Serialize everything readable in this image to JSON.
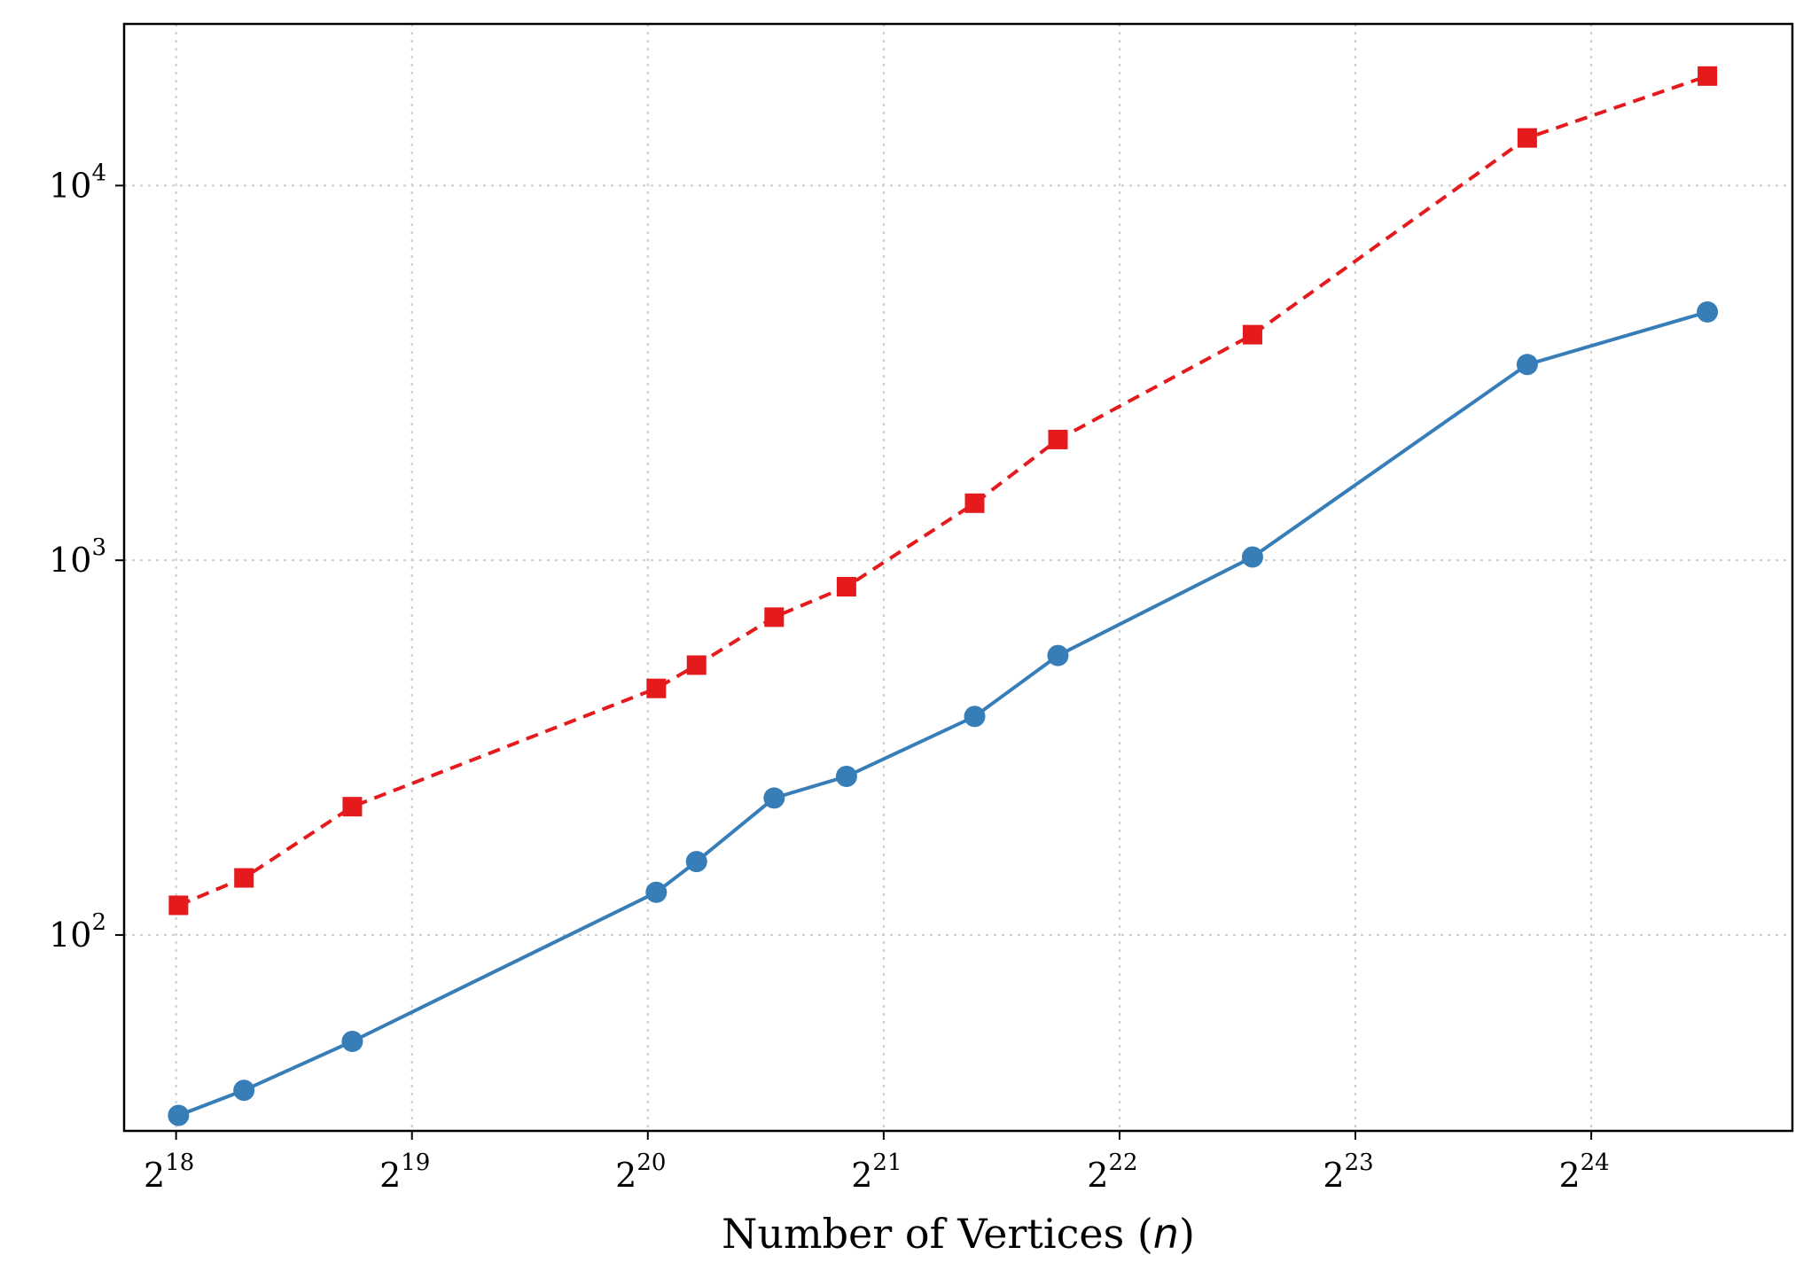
{
  "chart_data": {
    "type": "line",
    "title": "",
    "xlabel": "Number of Vertices",
    "xlabel_var": "n",
    "ylabel": "",
    "x_scale": "log2",
    "y_scale": "log10",
    "xlim": [
      225000,
      30300000
    ],
    "ylim": [
      30,
      27000
    ],
    "grid": true,
    "legend": "none",
    "x_ticks": [
      {
        "base": "2",
        "exp": "18",
        "value": 262144
      },
      {
        "base": "2",
        "exp": "19",
        "value": 524288
      },
      {
        "base": "2",
        "exp": "20",
        "value": 1048576
      },
      {
        "base": "2",
        "exp": "21",
        "value": 2097152
      },
      {
        "base": "2",
        "exp": "22",
        "value": 4194304
      },
      {
        "base": "2",
        "exp": "23",
        "value": 8388608
      },
      {
        "base": "2",
        "exp": "24",
        "value": 16777216
      }
    ],
    "y_ticks": [
      {
        "base": "10",
        "exp": "2",
        "value": 100
      },
      {
        "base": "10",
        "exp": "3",
        "value": 1000
      },
      {
        "base": "10",
        "exp": "4",
        "value": 10000
      }
    ],
    "series": [
      {
        "name": "series-red",
        "color": "#e41a1c",
        "linestyle": "dashed",
        "marker": "square",
        "x": [
          264000,
          320000,
          440000,
          1075000,
          1210000,
          1520000,
          1880000,
          2740000,
          3500000,
          6200000,
          13900000,
          23600000
        ],
        "y": [
          120,
          142,
          220,
          455,
          525,
          705,
          850,
          1420,
          2100,
          4000,
          13400,
          19600
        ]
      },
      {
        "name": "series-blue",
        "color": "#377eb8",
        "linestyle": "solid",
        "marker": "circle",
        "x": [
          264000,
          320000,
          440000,
          1075000,
          1210000,
          1520000,
          1880000,
          2740000,
          3500000,
          6200000,
          13900000,
          23600000
        ],
        "y": [
          33,
          38.5,
          52,
          130,
          157,
          232,
          265,
          383,
          557,
          1020,
          3330,
          4600
        ]
      }
    ]
  }
}
